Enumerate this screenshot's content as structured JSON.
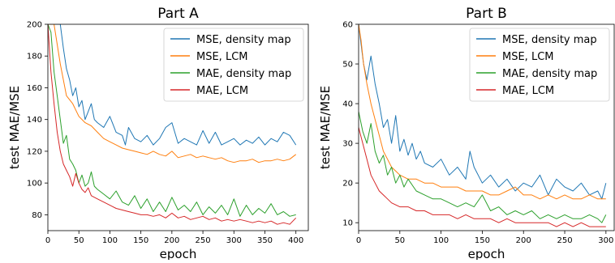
{
  "chart_data": [
    {
      "type": "line",
      "title": "Part A",
      "xlabel": "epoch",
      "ylabel": "test MAE/MSE",
      "xlim": [
        0,
        420
      ],
      "ylim": [
        70,
        200
      ],
      "xticks": [
        0,
        50,
        100,
        150,
        200,
        250,
        300,
        350,
        400
      ],
      "yticks": [
        80,
        100,
        120,
        140,
        160,
        180,
        200
      ],
      "grid": false,
      "legend": "top-right",
      "series": [
        {
          "name": "MSE, density map",
          "color": "#1f77b4",
          "x": [
            0,
            10,
            20,
            25,
            30,
            35,
            40,
            45,
            50,
            55,
            60,
            65,
            70,
            75,
            80,
            90,
            100,
            110,
            120,
            125,
            130,
            140,
            150,
            160,
            170,
            180,
            190,
            200,
            210,
            220,
            230,
            240,
            250,
            260,
            270,
            280,
            290,
            300,
            310,
            320,
            330,
            340,
            350,
            360,
            370,
            380,
            390,
            400
          ],
          "y": [
            200,
            200,
            200,
            185,
            172,
            165,
            155,
            160,
            148,
            152,
            140,
            145,
            150,
            140,
            138,
            135,
            142,
            132,
            130,
            124,
            135,
            128,
            126,
            130,
            124,
            128,
            135,
            138,
            125,
            128,
            126,
            124,
            133,
            125,
            132,
            124,
            126,
            128,
            124,
            127,
            125,
            129,
            124,
            128,
            126,
            132,
            130,
            124
          ]
        },
        {
          "name": "MSE, LCM",
          "color": "#ff7f0e",
          "x": [
            0,
            10,
            20,
            30,
            40,
            50,
            60,
            70,
            80,
            90,
            100,
            110,
            120,
            130,
            140,
            150,
            160,
            170,
            180,
            190,
            200,
            210,
            220,
            230,
            240,
            250,
            260,
            270,
            280,
            290,
            300,
            310,
            320,
            330,
            340,
            350,
            360,
            370,
            380,
            390,
            400
          ],
          "y": [
            200,
            200,
            175,
            155,
            150,
            142,
            138,
            136,
            132,
            128,
            126,
            124,
            122,
            121,
            120,
            119,
            118,
            120,
            118,
            117,
            120,
            116,
            117,
            118,
            116,
            117,
            116,
            115,
            116,
            114,
            113,
            114,
            114,
            115,
            113,
            114,
            114,
            115,
            114,
            115,
            118
          ]
        },
        {
          "name": "MAE, density map",
          "color": "#2ca02c",
          "x": [
            0,
            5,
            10,
            15,
            20,
            25,
            30,
            35,
            40,
            45,
            50,
            55,
            60,
            65,
            70,
            75,
            80,
            90,
            100,
            110,
            120,
            130,
            140,
            150,
            160,
            170,
            180,
            190,
            200,
            210,
            220,
            230,
            240,
            250,
            260,
            270,
            280,
            290,
            300,
            310,
            320,
            330,
            340,
            350,
            360,
            370,
            380,
            390,
            400
          ],
          "y": [
            200,
            195,
            170,
            155,
            140,
            125,
            130,
            115,
            112,
            108,
            100,
            105,
            98,
            100,
            107,
            98,
            96,
            93,
            90,
            95,
            88,
            86,
            92,
            84,
            90,
            82,
            88,
            82,
            91,
            83,
            86,
            82,
            88,
            80,
            85,
            81,
            86,
            80,
            90,
            79,
            86,
            80,
            84,
            81,
            87,
            80,
            82,
            79,
            80
          ]
        },
        {
          "name": "MAE, LCM",
          "color": "#d62728",
          "x": [
            0,
            5,
            10,
            15,
            20,
            25,
            30,
            35,
            40,
            45,
            50,
            55,
            60,
            65,
            70,
            80,
            90,
            100,
            110,
            120,
            130,
            140,
            150,
            160,
            170,
            180,
            190,
            200,
            210,
            220,
            230,
            240,
            250,
            260,
            270,
            280,
            290,
            300,
            310,
            320,
            330,
            340,
            350,
            360,
            370,
            380,
            390,
            400
          ],
          "y": [
            200,
            170,
            150,
            132,
            120,
            112,
            108,
            104,
            98,
            106,
            100,
            96,
            94,
            97,
            92,
            90,
            88,
            86,
            84,
            83,
            82,
            81,
            80,
            80,
            79,
            80,
            78,
            81,
            78,
            79,
            77,
            78,
            79,
            77,
            78,
            76,
            77,
            76,
            77,
            76,
            75,
            76,
            75,
            76,
            74,
            75,
            74,
            78
          ]
        }
      ]
    },
    {
      "type": "line",
      "title": "Part B",
      "xlabel": "epoch",
      "ylabel": "test MAE/MSE",
      "xlim": [
        0,
        310
      ],
      "ylim": [
        8,
        60
      ],
      "xticks": [
        0,
        50,
        100,
        150,
        200,
        250,
        300
      ],
      "yticks": [
        10,
        20,
        30,
        40,
        50,
        60
      ],
      "grid": false,
      "legend": "top-right",
      "series": [
        {
          "name": "MSE, density map",
          "color": "#1f77b4",
          "x": [
            0,
            3,
            6,
            10,
            15,
            20,
            25,
            30,
            35,
            40,
            45,
            50,
            55,
            60,
            65,
            70,
            75,
            80,
            90,
            100,
            110,
            120,
            130,
            135,
            140,
            150,
            160,
            170,
            180,
            190,
            200,
            210,
            220,
            230,
            240,
            250,
            260,
            270,
            280,
            290,
            295,
            300
          ],
          "y": [
            60,
            55,
            50,
            46,
            52,
            45,
            40,
            34,
            36,
            30,
            37,
            28,
            31,
            27,
            30,
            26,
            28,
            25,
            24,
            26,
            22,
            24,
            21,
            28,
            24,
            20,
            22,
            19,
            21,
            18,
            20,
            19,
            22,
            17,
            21,
            19,
            18,
            20,
            17,
            18,
            16,
            20
          ]
        },
        {
          "name": "MSE, LCM",
          "color": "#ff7f0e",
          "x": [
            0,
            3,
            6,
            10,
            15,
            20,
            25,
            30,
            35,
            40,
            45,
            50,
            60,
            70,
            80,
            90,
            100,
            110,
            120,
            130,
            140,
            150,
            160,
            170,
            180,
            190,
            200,
            210,
            220,
            230,
            240,
            250,
            260,
            270,
            280,
            290,
            300
          ],
          "y": [
            60,
            56,
            50,
            45,
            40,
            36,
            32,
            28,
            26,
            24,
            23,
            22,
            21,
            21,
            20,
            20,
            19,
            19,
            19,
            18,
            18,
            18,
            17,
            17,
            18,
            19,
            17,
            17,
            16,
            17,
            16,
            17,
            16,
            16,
            17,
            16,
            16
          ]
        },
        {
          "name": "MAE, density map",
          "color": "#2ca02c",
          "x": [
            0,
            5,
            10,
            15,
            20,
            25,
            30,
            35,
            40,
            45,
            50,
            55,
            60,
            70,
            80,
            90,
            100,
            110,
            120,
            130,
            140,
            150,
            160,
            170,
            180,
            190,
            200,
            210,
            220,
            230,
            240,
            250,
            260,
            270,
            280,
            290,
            295,
            300
          ],
          "y": [
            38,
            33,
            30,
            35,
            28,
            25,
            27,
            22,
            24,
            20,
            22,
            19,
            21,
            18,
            17,
            16,
            16,
            15,
            14,
            15,
            14,
            17,
            13,
            14,
            12,
            13,
            12,
            13,
            11,
            12,
            11,
            12,
            11,
            11,
            12,
            11,
            10,
            12
          ]
        },
        {
          "name": "MAE, LCM",
          "color": "#d62728",
          "x": [
            0,
            5,
            10,
            15,
            20,
            25,
            30,
            35,
            40,
            50,
            60,
            70,
            80,
            90,
            100,
            110,
            120,
            130,
            140,
            150,
            160,
            170,
            180,
            190,
            200,
            210,
            220,
            230,
            240,
            250,
            260,
            270,
            280,
            290,
            300
          ],
          "y": [
            34,
            30,
            26,
            22,
            20,
            18,
            17,
            16,
            15,
            14,
            14,
            13,
            13,
            12,
            12,
            12,
            11,
            12,
            11,
            11,
            11,
            10,
            11,
            10,
            10,
            10,
            10,
            10,
            9,
            10,
            9,
            10,
            9,
            9,
            9
          ]
        }
      ]
    }
  ]
}
